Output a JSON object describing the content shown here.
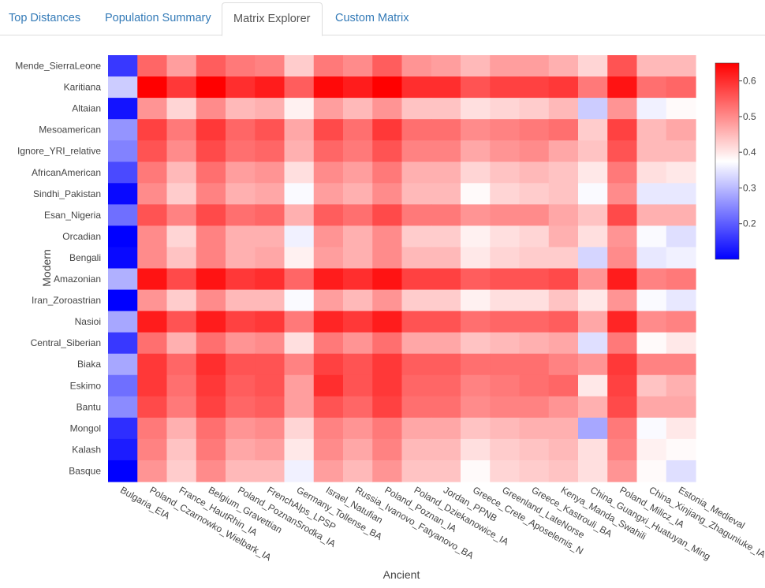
{
  "tabs": [
    {
      "label": "Top Distances",
      "active": false
    },
    {
      "label": "Population Summary",
      "active": false
    },
    {
      "label": "Matrix Explorer",
      "active": true
    },
    {
      "label": "Custom Matrix",
      "active": false
    }
  ],
  "chart_data": {
    "type": "heatmap",
    "title": "",
    "xlabel": "Ancient",
    "ylabel": "Modern",
    "x": [
      "Bulgaria_EIA",
      "Poland_Czarnowko_Wielbark_IA",
      "France_HautRhin_IA",
      "Belgium_Gravettian",
      "Poland_PoznanSrodka_IA",
      "FrenchAlps_LPSP",
      "Germany_Tollense_BA",
      "Israel_Natufian",
      "Russia_Ivanovo_Fatyanovo_BA",
      "Poland_Poznan_IA",
      "Poland_Dziekanowice_IA",
      "Jordan_PPNB",
      "Greece_Crete_Aposelemis_N",
      "Greenland_LateNorse",
      "Greece_Kastrouli_BA",
      "Kenya_Manda_Swahili",
      "China_Guangxi_Huatuyan_Ming",
      "Poland_Milicz_IA",
      "China_Xinjiang_Zhaguniuke_IA",
      "Estonia_Medieval"
    ],
    "y": [
      "Mende_SierraLeone",
      "Karitiana",
      "Altaian",
      "Mesoamerican",
      "Ignore_YRI_relative",
      "AfricanAmerican",
      "Sindhi_Pakistan",
      "Esan_Nigeria",
      "Orcadian",
      "Bengali",
      "Amazonian",
      "Iran_Zoroastrian",
      "Nasioi",
      "Central_Siberian",
      "Biaka",
      "Eskimo",
      "Bantu",
      "Mongol",
      "Kalash",
      "Basque"
    ],
    "z": [
      [
        0.16,
        0.54,
        0.48,
        0.55,
        0.52,
        0.51,
        0.43,
        0.52,
        0.5,
        0.55,
        0.49,
        0.48,
        0.45,
        0.48,
        0.48,
        0.46,
        0.42,
        0.56,
        0.45,
        0.45
      ],
      [
        0.32,
        0.65,
        0.59,
        0.65,
        0.6,
        0.62,
        0.55,
        0.64,
        0.62,
        0.65,
        0.6,
        0.6,
        0.56,
        0.58,
        0.58,
        0.59,
        0.52,
        0.63,
        0.53,
        0.54
      ],
      [
        0.12,
        0.49,
        0.42,
        0.5,
        0.45,
        0.46,
        0.39,
        0.48,
        0.45,
        0.49,
        0.44,
        0.44,
        0.41,
        0.42,
        0.43,
        0.45,
        0.32,
        0.49,
        0.36,
        0.38
      ],
      [
        0.26,
        0.58,
        0.52,
        0.59,
        0.54,
        0.56,
        0.47,
        0.57,
        0.53,
        0.59,
        0.53,
        0.53,
        0.5,
        0.51,
        0.52,
        0.53,
        0.43,
        0.58,
        0.45,
        0.47
      ],
      [
        0.24,
        0.56,
        0.5,
        0.57,
        0.53,
        0.54,
        0.46,
        0.54,
        0.52,
        0.56,
        0.51,
        0.51,
        0.47,
        0.49,
        0.5,
        0.47,
        0.44,
        0.56,
        0.45,
        0.45
      ],
      [
        0.18,
        0.52,
        0.45,
        0.53,
        0.48,
        0.49,
        0.41,
        0.5,
        0.48,
        0.52,
        0.46,
        0.46,
        0.42,
        0.44,
        0.45,
        0.44,
        0.4,
        0.52,
        0.41,
        0.4
      ],
      [
        0.11,
        0.5,
        0.43,
        0.51,
        0.46,
        0.47,
        0.37,
        0.48,
        0.46,
        0.5,
        0.45,
        0.45,
        0.38,
        0.42,
        0.43,
        0.44,
        0.37,
        0.5,
        0.35,
        0.35
      ],
      [
        0.22,
        0.56,
        0.51,
        0.57,
        0.53,
        0.54,
        0.46,
        0.55,
        0.53,
        0.57,
        0.52,
        0.52,
        0.49,
        0.5,
        0.5,
        0.47,
        0.44,
        0.57,
        0.46,
        0.46
      ],
      [
        0.1,
        0.5,
        0.42,
        0.51,
        0.46,
        0.46,
        0.36,
        0.49,
        0.46,
        0.5,
        0.43,
        0.43,
        0.39,
        0.41,
        0.42,
        0.46,
        0.41,
        0.49,
        0.37,
        0.34
      ],
      [
        0.11,
        0.5,
        0.44,
        0.51,
        0.46,
        0.47,
        0.39,
        0.48,
        0.46,
        0.5,
        0.45,
        0.45,
        0.4,
        0.42,
        0.43,
        0.43,
        0.33,
        0.5,
        0.35,
        0.36
      ],
      [
        0.29,
        0.63,
        0.57,
        0.63,
        0.59,
        0.6,
        0.54,
        0.62,
        0.6,
        0.63,
        0.58,
        0.58,
        0.55,
        0.56,
        0.56,
        0.57,
        0.49,
        0.62,
        0.51,
        0.52
      ],
      [
        0.1,
        0.49,
        0.43,
        0.5,
        0.45,
        0.45,
        0.37,
        0.48,
        0.45,
        0.49,
        0.43,
        0.43,
        0.39,
        0.41,
        0.41,
        0.44,
        0.4,
        0.49,
        0.37,
        0.35
      ],
      [
        0.28,
        0.62,
        0.56,
        0.62,
        0.58,
        0.59,
        0.52,
        0.61,
        0.59,
        0.62,
        0.56,
        0.56,
        0.53,
        0.54,
        0.54,
        0.55,
        0.47,
        0.61,
        0.5,
        0.51
      ],
      [
        0.16,
        0.53,
        0.46,
        0.53,
        0.49,
        0.5,
        0.41,
        0.52,
        0.49,
        0.53,
        0.47,
        0.47,
        0.44,
        0.45,
        0.46,
        0.47,
        0.34,
        0.52,
        0.38,
        0.4
      ],
      [
        0.28,
        0.59,
        0.54,
        0.6,
        0.56,
        0.56,
        0.51,
        0.58,
        0.56,
        0.59,
        0.55,
        0.55,
        0.53,
        0.53,
        0.53,
        0.51,
        0.49,
        0.59,
        0.51,
        0.51
      ],
      [
        0.22,
        0.59,
        0.53,
        0.59,
        0.55,
        0.56,
        0.48,
        0.6,
        0.56,
        0.59,
        0.54,
        0.54,
        0.51,
        0.52,
        0.53,
        0.54,
        0.4,
        0.58,
        0.44,
        0.46
      ],
      [
        0.25,
        0.57,
        0.52,
        0.58,
        0.54,
        0.55,
        0.48,
        0.56,
        0.54,
        0.58,
        0.53,
        0.53,
        0.5,
        0.51,
        0.51,
        0.49,
        0.46,
        0.57,
        0.47,
        0.47
      ],
      [
        0.15,
        0.52,
        0.46,
        0.53,
        0.49,
        0.5,
        0.42,
        0.51,
        0.49,
        0.52,
        0.47,
        0.47,
        0.44,
        0.45,
        0.46,
        0.46,
        0.28,
        0.52,
        0.37,
        0.4
      ],
      [
        0.13,
        0.51,
        0.44,
        0.52,
        0.47,
        0.48,
        0.4,
        0.5,
        0.47,
        0.51,
        0.45,
        0.45,
        0.41,
        0.43,
        0.44,
        0.45,
        0.41,
        0.51,
        0.39,
        0.38
      ],
      [
        0.1,
        0.49,
        0.43,
        0.5,
        0.45,
        0.45,
        0.36,
        0.48,
        0.45,
        0.49,
        0.44,
        0.44,
        0.38,
        0.42,
        0.43,
        0.44,
        0.41,
        0.49,
        0.38,
        0.34
      ]
    ],
    "zmin": 0.1,
    "zmax": 0.65,
    "colorscale": [
      "#0000ff",
      "#ffffff",
      "#ff0000"
    ],
    "colorbar": {
      "ticks": [
        0.2,
        0.3,
        0.4,
        0.5,
        0.6
      ],
      "tick_labels": [
        "0.2",
        "0.3",
        "0.4",
        "0.5",
        "0.6"
      ]
    }
  }
}
